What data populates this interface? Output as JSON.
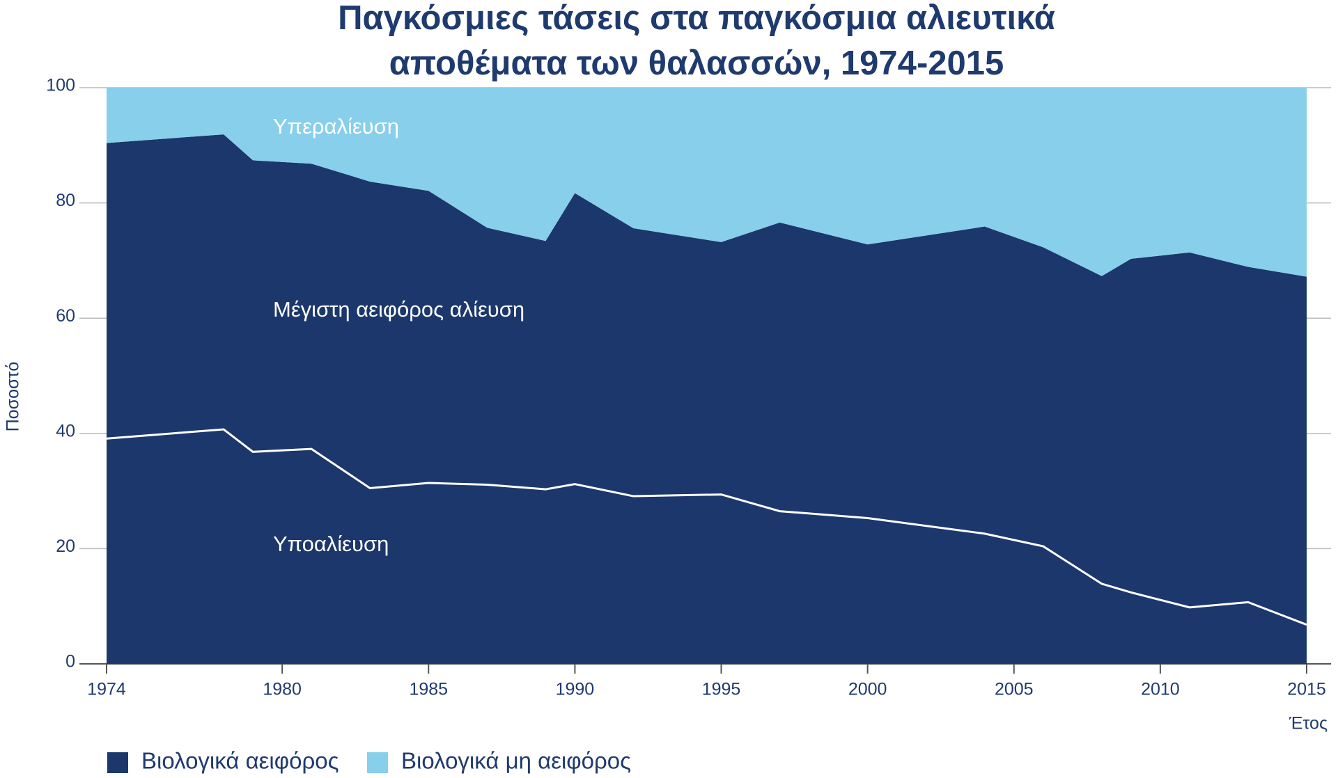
{
  "chart_data": {
    "type": "stacked_area",
    "title": [
      "Παγκόσμιες τάσεις στα παγκόσμια αλιευτικά",
      "αποθέματα των θαλασσών, 1974-2015"
    ],
    "x_label": "Έτος",
    "y_label": "Ποσοστό",
    "x": [
      1974,
      1978,
      1979,
      1981,
      1983,
      1985,
      1987,
      1989,
      1990,
      1992,
      1995,
      1997,
      2000,
      2004,
      2006,
      2008,
      2009,
      2011,
      2013,
      2015
    ],
    "series": [
      {
        "name": "Βιολογικά αειφόρος",
        "color": "#1c376b",
        "values": [
          90.4,
          91.9,
          87.4,
          86.8,
          83.7,
          82.1,
          75.7,
          73.4,
          81.7,
          75.6,
          73.2,
          76.6,
          72.8,
          75.9,
          72.3,
          67.3,
          70.3,
          71.4,
          68.9,
          67.2
        ]
      },
      {
        "name": "Βιολογικά μη αειφόρος",
        "color": "#87cfeb",
        "values": [
          9.6,
          8.1,
          12.6,
          13.2,
          16.3,
          17.9,
          24.3,
          26.6,
          18.3,
          24.4,
          26.8,
          23.4,
          27.2,
          24.1,
          27.7,
          32.7,
          29.7,
          28.6,
          31.1,
          32.8
        ]
      }
    ],
    "lines": [
      {
        "name": "Υποαλίευση",
        "color": "#ffffff",
        "values": [
          39.1,
          40.7,
          36.8,
          37.3,
          30.5,
          31.4,
          31.1,
          30.3,
          31.2,
          29.1,
          29.4,
          26.5,
          25.3,
          22.6,
          20.4,
          13.9,
          12.4,
          9.8,
          10.7,
          6.8
        ]
      }
    ],
    "annotations": [
      "Υπεραλίευση",
      "Μέγιστη αειφόρος αλίευση"
    ],
    "xlim": [
      1974,
      2015
    ],
    "xticks": [
      1974,
      1980,
      1985,
      1990,
      1995,
      2000,
      2005,
      2010,
      2015
    ],
    "ylim": [
      0,
      100
    ],
    "yticks": [
      0,
      20,
      40,
      60,
      80,
      100
    ],
    "grid": true
  }
}
